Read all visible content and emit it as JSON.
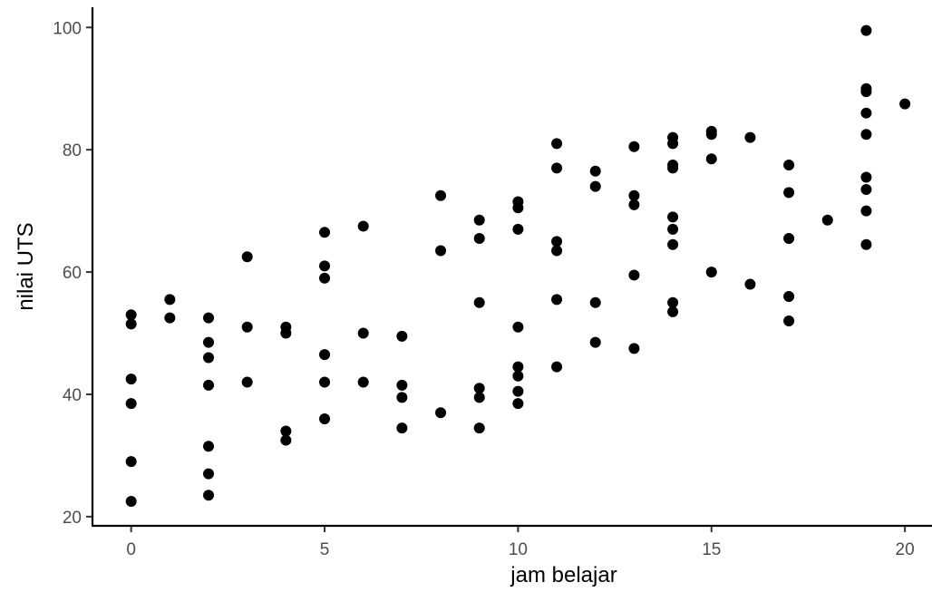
{
  "chart_data": {
    "type": "scatter",
    "xlabel": "jam belajar",
    "ylabel": "nilai UTS",
    "xlim": [
      -1,
      20.7
    ],
    "ylim": [
      18.5,
      103.3
    ],
    "x_ticks": [
      0,
      5,
      10,
      15,
      20
    ],
    "y_ticks": [
      20,
      40,
      60,
      80,
      100
    ],
    "grid": false,
    "legend": "none",
    "point_color": "#000000",
    "points": [
      {
        "x": 0,
        "y": 53
      },
      {
        "x": 0,
        "y": 51.5
      },
      {
        "x": 0,
        "y": 42.5
      },
      {
        "x": 0,
        "y": 38.5
      },
      {
        "x": 0,
        "y": 29
      },
      {
        "x": 0,
        "y": 22.5
      },
      {
        "x": 1,
        "y": 55.5
      },
      {
        "x": 1,
        "y": 52.5
      },
      {
        "x": 2,
        "y": 52.5
      },
      {
        "x": 2,
        "y": 48.5
      },
      {
        "x": 2,
        "y": 46
      },
      {
        "x": 2,
        "y": 41.5
      },
      {
        "x": 2,
        "y": 31.5
      },
      {
        "x": 2,
        "y": 27
      },
      {
        "x": 2,
        "y": 23.5
      },
      {
        "x": 3,
        "y": 62.5
      },
      {
        "x": 3,
        "y": 51
      },
      {
        "x": 3,
        "y": 42
      },
      {
        "x": 4,
        "y": 51
      },
      {
        "x": 4,
        "y": 50
      },
      {
        "x": 4,
        "y": 34
      },
      {
        "x": 4,
        "y": 32.5
      },
      {
        "x": 5,
        "y": 66.5
      },
      {
        "x": 5,
        "y": 61
      },
      {
        "x": 5,
        "y": 59
      },
      {
        "x": 5,
        "y": 46.5
      },
      {
        "x": 5,
        "y": 42
      },
      {
        "x": 5,
        "y": 36
      },
      {
        "x": 6,
        "y": 67.5
      },
      {
        "x": 6,
        "y": 50
      },
      {
        "x": 6,
        "y": 42
      },
      {
        "x": 7,
        "y": 49.5
      },
      {
        "x": 7,
        "y": 41.5
      },
      {
        "x": 7,
        "y": 39.5
      },
      {
        "x": 7,
        "y": 34.5
      },
      {
        "x": 8,
        "y": 72.5
      },
      {
        "x": 8,
        "y": 63.5
      },
      {
        "x": 8,
        "y": 37
      },
      {
        "x": 9,
        "y": 68.5
      },
      {
        "x": 9,
        "y": 65.5
      },
      {
        "x": 9,
        "y": 55
      },
      {
        "x": 9,
        "y": 41
      },
      {
        "x": 9,
        "y": 39.5
      },
      {
        "x": 9,
        "y": 34.5
      },
      {
        "x": 10,
        "y": 71.5
      },
      {
        "x": 10,
        "y": 70.5
      },
      {
        "x": 10,
        "y": 67
      },
      {
        "x": 10,
        "y": 51
      },
      {
        "x": 10,
        "y": 44.5
      },
      {
        "x": 10,
        "y": 43
      },
      {
        "x": 10,
        "y": 40.5
      },
      {
        "x": 10,
        "y": 38.5
      },
      {
        "x": 11,
        "y": 81
      },
      {
        "x": 11,
        "y": 77
      },
      {
        "x": 11,
        "y": 65
      },
      {
        "x": 11,
        "y": 63.5
      },
      {
        "x": 11,
        "y": 55.5
      },
      {
        "x": 11,
        "y": 44.5
      },
      {
        "x": 12,
        "y": 76.5
      },
      {
        "x": 12,
        "y": 74
      },
      {
        "x": 12,
        "y": 55
      },
      {
        "x": 12,
        "y": 48.5
      },
      {
        "x": 13,
        "y": 80.5
      },
      {
        "x": 13,
        "y": 72.5
      },
      {
        "x": 13,
        "y": 71
      },
      {
        "x": 13,
        "y": 59.5
      },
      {
        "x": 13,
        "y": 47.5
      },
      {
        "x": 14,
        "y": 82
      },
      {
        "x": 14,
        "y": 81
      },
      {
        "x": 14,
        "y": 77.5
      },
      {
        "x": 14,
        "y": 77
      },
      {
        "x": 14,
        "y": 69
      },
      {
        "x": 14,
        "y": 67
      },
      {
        "x": 14,
        "y": 64.5
      },
      {
        "x": 14,
        "y": 55
      },
      {
        "x": 14,
        "y": 53.5
      },
      {
        "x": 15,
        "y": 83
      },
      {
        "x": 15,
        "y": 82.5
      },
      {
        "x": 15,
        "y": 78.5
      },
      {
        "x": 15,
        "y": 60
      },
      {
        "x": 16,
        "y": 82
      },
      {
        "x": 16,
        "y": 58
      },
      {
        "x": 17,
        "y": 77.5
      },
      {
        "x": 17,
        "y": 73
      },
      {
        "x": 17,
        "y": 65.5
      },
      {
        "x": 17,
        "y": 56
      },
      {
        "x": 17,
        "y": 52
      },
      {
        "x": 18,
        "y": 68.5
      },
      {
        "x": 19,
        "y": 99.5
      },
      {
        "x": 19,
        "y": 90
      },
      {
        "x": 19,
        "y": 89.5
      },
      {
        "x": 19,
        "y": 86
      },
      {
        "x": 19,
        "y": 82.5
      },
      {
        "x": 19,
        "y": 75.5
      },
      {
        "x": 19,
        "y": 73.5
      },
      {
        "x": 19,
        "y": 70
      },
      {
        "x": 19,
        "y": 64.5
      },
      {
        "x": 20,
        "y": 87.5
      }
    ]
  }
}
